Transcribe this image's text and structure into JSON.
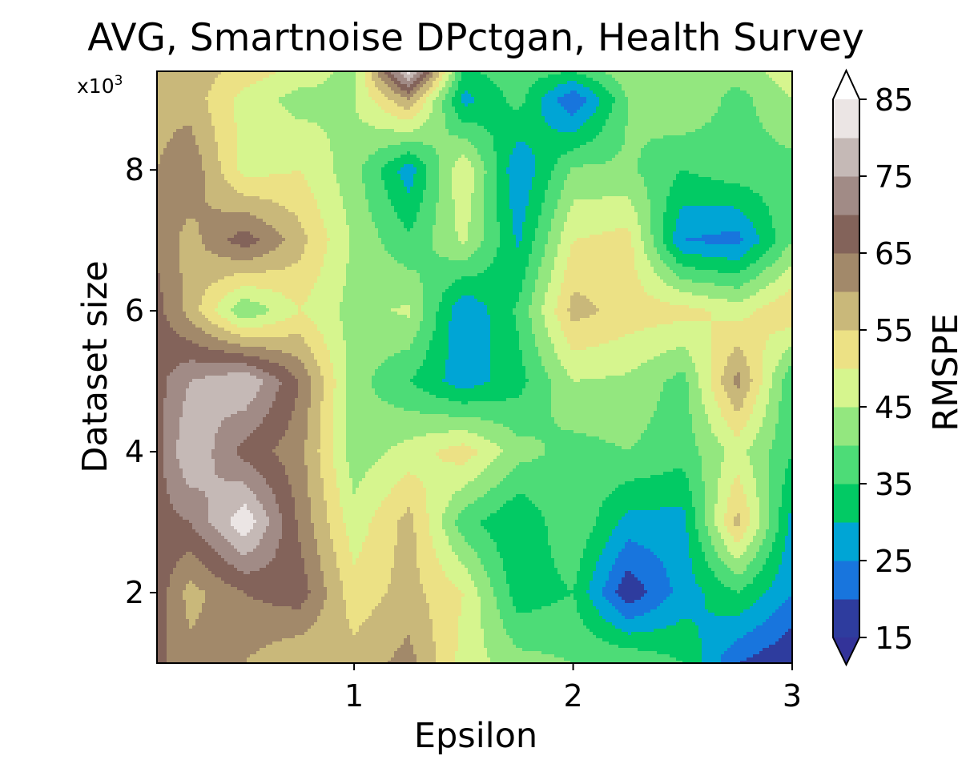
{
  "chart_data": {
    "type": "heatmap",
    "subtype": "filled-contour",
    "title": "AVG, Smartnoise DPctgan, Health Survey",
    "xlabel": "Epsilon",
    "ylabel": "Dataset size",
    "y_multiplier_label": "x10",
    "y_multiplier_exponent": "3",
    "colorbar_label": "RMSPE",
    "xlim": [
      0.1,
      3.0
    ],
    "ylim": [
      1000,
      9400
    ],
    "x_ticks": [
      1,
      2,
      3
    ],
    "y_ticks": [
      2,
      4,
      6,
      8
    ],
    "y_tick_unit": 1000,
    "x_grid": [
      0.1,
      0.25,
      0.5,
      0.75,
      1.0,
      1.25,
      1.5,
      1.75,
      2.0,
      2.25,
      2.5,
      2.75,
      3.0
    ],
    "y_grid": [
      1000,
      2000,
      3000,
      4000,
      5000,
      6000,
      7000,
      8000,
      9000,
      9400
    ],
    "z": [
      [
        66,
        62,
        60,
        55,
        57,
        62,
        48,
        42,
        40,
        40,
        35,
        20,
        15
      ],
      [
        68,
        58,
        65,
        68,
        52,
        57,
        50,
        32,
        35,
        16,
        27,
        35,
        25
      ],
      [
        68,
        70,
        84,
        64,
        47,
        57,
        37,
        30,
        40,
        28,
        28,
        57,
        28
      ],
      [
        68,
        80,
        68,
        62,
        42,
        47,
        53,
        42,
        38,
        40,
        37,
        47,
        35
      ],
      [
        68,
        75,
        80,
        65,
        42,
        35,
        27,
        33,
        45,
        44,
        38,
        62,
        35
      ],
      [
        67,
        58,
        40,
        50,
        43,
        46,
        25,
        36,
        57,
        53,
        52,
        48,
        55
      ],
      [
        64,
        58,
        68,
        57,
        44,
        36,
        46,
        29,
        50,
        52,
        25,
        23,
        40
      ],
      [
        60,
        64,
        48,
        50,
        42,
        27,
        50,
        25,
        41,
        41,
        35,
        38,
        38
      ],
      [
        58,
        58,
        48,
        43,
        45,
        60,
        28,
        37,
        20,
        40,
        45,
        38,
        45
      ],
      [
        60,
        58,
        53,
        48,
        43,
        83,
        34,
        38,
        35,
        44,
        40,
        42,
        48
      ]
    ],
    "levels": [
      15,
      20,
      25,
      30,
      35,
      40,
      45,
      50,
      55,
      60,
      65,
      70,
      75,
      80,
      85
    ],
    "colorbar_ticks": [
      15,
      25,
      35,
      45,
      55,
      65,
      75,
      85
    ],
    "colormap": "terrain",
    "colors": [
      "#2e3c9e",
      "#1875dd",
      "#00a5d5",
      "#02ca64",
      "#4ddc77",
      "#93e77f",
      "#d6f58e",
      "#ece185",
      "#c9b87a",
      "#a2896a",
      "#83635a",
      "#a18b86",
      "#c5b9b6",
      "#ebe5e4"
    ],
    "extend": "both",
    "under_color": "#333399",
    "over_color": "#ffffff"
  }
}
